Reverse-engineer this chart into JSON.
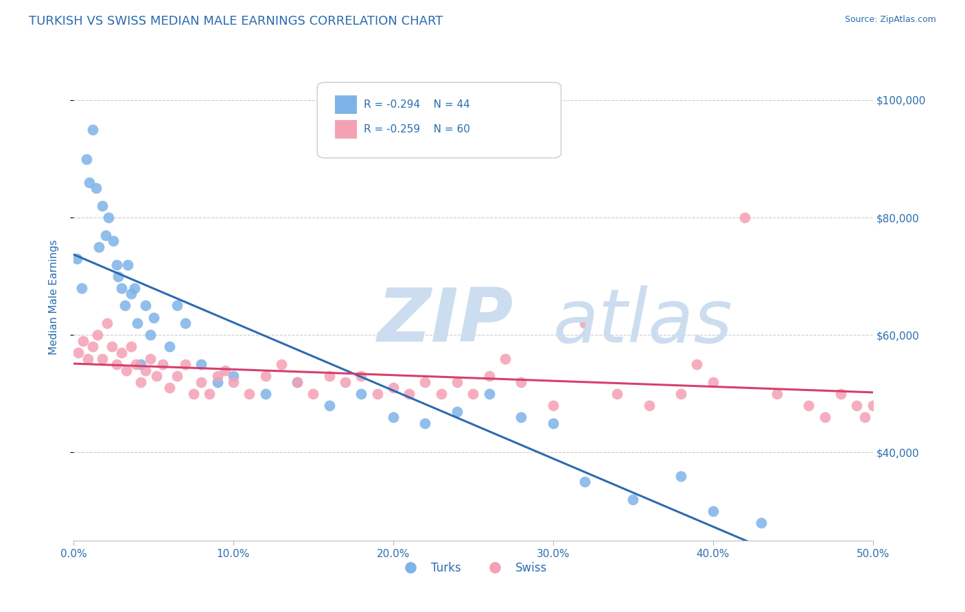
{
  "title": "TURKISH VS SWISS MEDIAN MALE EARNINGS CORRELATION CHART",
  "source_text": "Source: ZipAtlas.com",
  "ylabel": "Median Male Earnings",
  "xmin": 0.0,
  "xmax": 0.5,
  "ymin": 25000,
  "ymax": 108000,
  "yticks": [
    40000,
    60000,
    80000,
    100000
  ],
  "ytick_labels": [
    "$40,000",
    "$60,000",
    "$80,000",
    "$100,000"
  ],
  "xticks": [
    0.0,
    0.1,
    0.2,
    0.3,
    0.4,
    0.5
  ],
  "xtick_labels": [
    "0.0%",
    "10.0%",
    "20.0%",
    "30.0%",
    "40.0%",
    "50.0%"
  ],
  "turks_x": [
    0.002,
    0.005,
    0.008,
    0.01,
    0.012,
    0.014,
    0.016,
    0.018,
    0.02,
    0.022,
    0.025,
    0.027,
    0.028,
    0.03,
    0.032,
    0.034,
    0.036,
    0.038,
    0.04,
    0.042,
    0.045,
    0.048,
    0.05,
    0.06,
    0.065,
    0.07,
    0.08,
    0.09,
    0.1,
    0.12,
    0.14,
    0.16,
    0.18,
    0.2,
    0.22,
    0.24,
    0.26,
    0.28,
    0.3,
    0.32,
    0.35,
    0.38,
    0.4,
    0.43
  ],
  "turks_y": [
    73000,
    68000,
    90000,
    86000,
    95000,
    85000,
    75000,
    82000,
    77000,
    80000,
    76000,
    72000,
    70000,
    68000,
    65000,
    72000,
    67000,
    68000,
    62000,
    55000,
    65000,
    60000,
    63000,
    58000,
    65000,
    62000,
    55000,
    52000,
    53000,
    50000,
    52000,
    48000,
    50000,
    46000,
    45000,
    47000,
    50000,
    46000,
    45000,
    35000,
    32000,
    36000,
    30000,
    28000
  ],
  "swiss_x": [
    0.003,
    0.006,
    0.009,
    0.012,
    0.015,
    0.018,
    0.021,
    0.024,
    0.027,
    0.03,
    0.033,
    0.036,
    0.039,
    0.042,
    0.045,
    0.048,
    0.052,
    0.056,
    0.06,
    0.065,
    0.07,
    0.075,
    0.08,
    0.085,
    0.09,
    0.095,
    0.1,
    0.11,
    0.12,
    0.13,
    0.14,
    0.15,
    0.16,
    0.17,
    0.18,
    0.19,
    0.2,
    0.21,
    0.22,
    0.23,
    0.24,
    0.25,
    0.26,
    0.27,
    0.28,
    0.3,
    0.32,
    0.34,
    0.36,
    0.38,
    0.39,
    0.4,
    0.42,
    0.44,
    0.46,
    0.47,
    0.48,
    0.49,
    0.495,
    0.5
  ],
  "swiss_y": [
    57000,
    59000,
    56000,
    58000,
    60000,
    56000,
    62000,
    58000,
    55000,
    57000,
    54000,
    58000,
    55000,
    52000,
    54000,
    56000,
    53000,
    55000,
    51000,
    53000,
    55000,
    50000,
    52000,
    50000,
    53000,
    54000,
    52000,
    50000,
    53000,
    55000,
    52000,
    50000,
    53000,
    52000,
    53000,
    50000,
    51000,
    50000,
    52000,
    50000,
    52000,
    50000,
    53000,
    56000,
    52000,
    48000,
    62000,
    50000,
    48000,
    50000,
    55000,
    52000,
    80000,
    50000,
    48000,
    46000,
    50000,
    48000,
    46000,
    48000
  ],
  "turks_color": "#7eb3e8",
  "swiss_color": "#f4a0b5",
  "turks_line_color": "#2b6cb0",
  "swiss_line_color": "#d63f6e",
  "legend_turks_r": "R = -0.294",
  "legend_turks_n": "N = 44",
  "legend_swiss_r": "R = -0.259",
  "legend_swiss_n": "N = 60",
  "title_color": "#2b6cb0",
  "axis_color": "#2b6cb0",
  "grid_color": "#cccccc",
  "watermark_color": "#ccddf0",
  "background_color": "#ffffff"
}
